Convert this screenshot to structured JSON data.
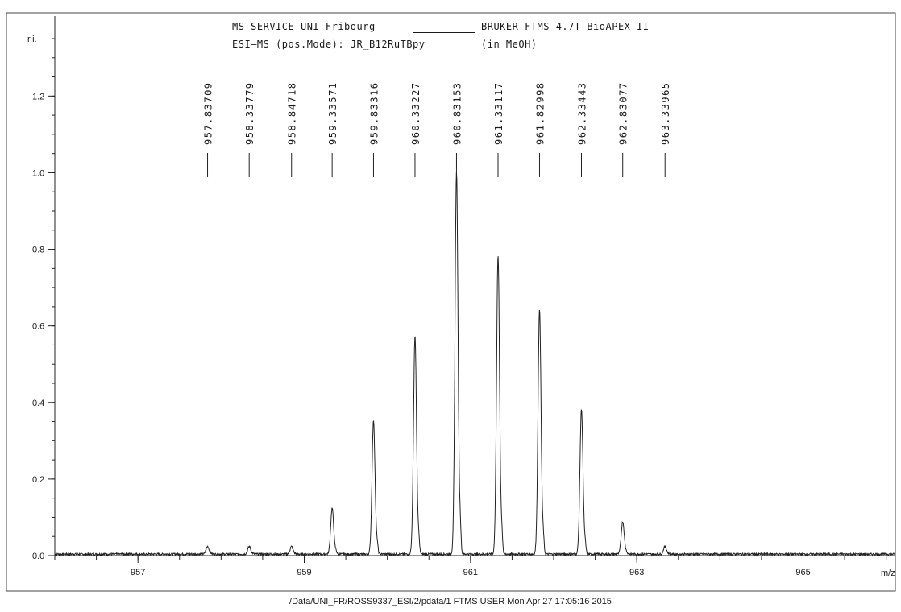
{
  "header": {
    "line1_left": "MS—SERVICE  UNI Fribourg",
    "line1_right": "BRUKER FTMS 4.7T BioAPEX II",
    "line2_left": "ESI—MS (pos.Mode):  JR_B12RuTBpy",
    "line2_right": "(in MeOH)"
  },
  "footer": "/Data/UNI_FR/ROSS9337_ESI/2/pdata/1   FTMS USER   Mon Apr 27 17:05:16 2015",
  "chart_data": {
    "type": "line",
    "title": "",
    "xlabel": "m/z",
    "ylabel": "r.i.",
    "xlim": [
      956.0,
      966.1
    ],
    "ylim": [
      0.0,
      1.35
    ],
    "x_ticks": [
      957,
      959,
      961,
      963,
      965
    ],
    "y_ticks": [
      "0.0",
      "0.2",
      "0.4",
      "0.6",
      "0.8",
      "1.0",
      "1.2"
    ],
    "x_minor_step": 0.5,
    "y_minor_step": 0.05,
    "peaks": [
      {
        "mz": 957.83709,
        "label": "957.83709",
        "intensity": 0.02
      },
      {
        "mz": 958.33779,
        "label": "958.33779",
        "intensity": 0.02
      },
      {
        "mz": 958.84718,
        "label": "958.84718",
        "intensity": 0.02
      },
      {
        "mz": 959.33571,
        "label": "959.33571",
        "intensity": 0.12
      },
      {
        "mz": 959.83316,
        "label": "959.83316",
        "intensity": 0.35
      },
      {
        "mz": 960.33227,
        "label": "960.33227",
        "intensity": 0.57
      },
      {
        "mz": 960.83153,
        "label": "960.83153",
        "intensity": 1.0
      },
      {
        "mz": 961.33117,
        "label": "961.33117",
        "intensity": 0.78
      },
      {
        "mz": 961.82998,
        "label": "961.82998",
        "intensity": 0.64
      },
      {
        "mz": 962.33443,
        "label": "962.33443",
        "intensity": 0.38
      },
      {
        "mz": 962.83077,
        "label": "962.83077",
        "intensity": 0.085
      },
      {
        "mz": 963.33965,
        "label": "963.33965",
        "intensity": 0.02
      }
    ],
    "grid": false,
    "line_color": "#222222"
  }
}
